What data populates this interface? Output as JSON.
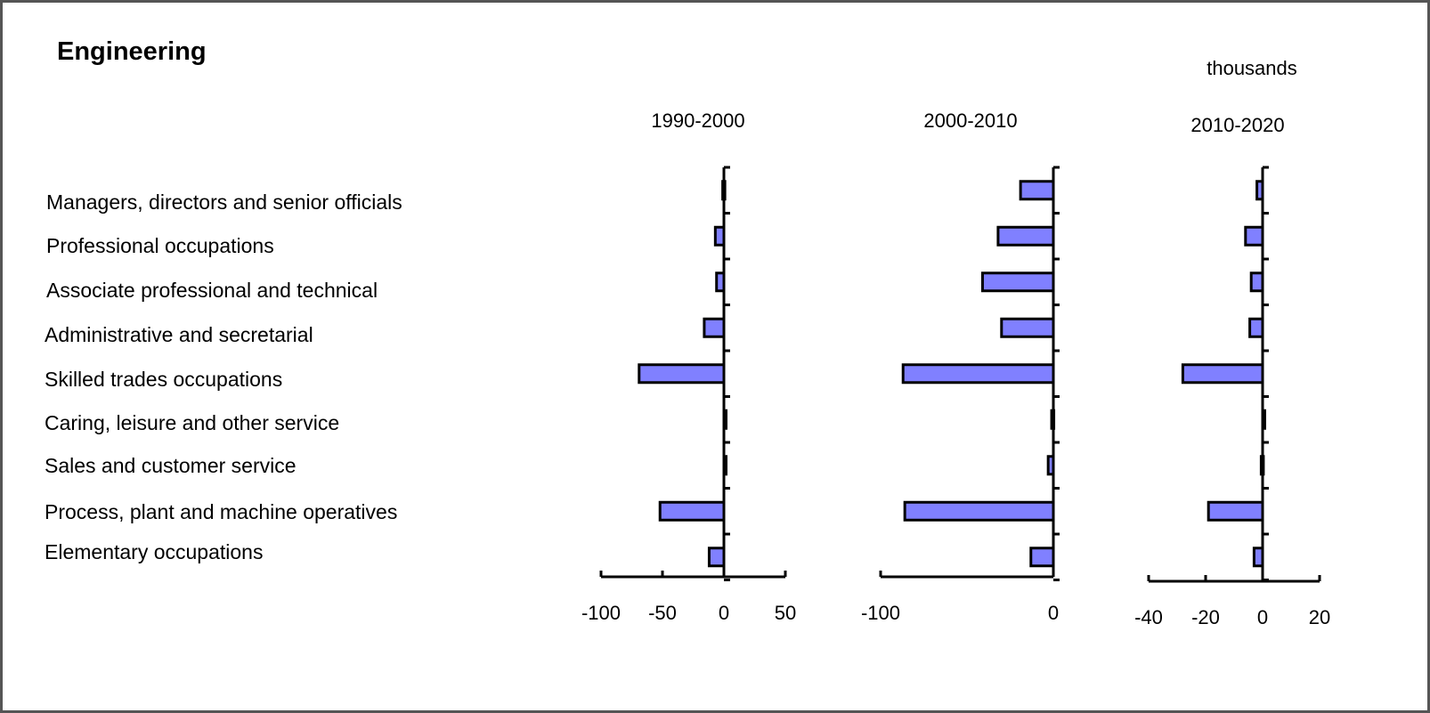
{
  "title": "Engineering",
  "units_label": "thousands",
  "colors": {
    "bar_fill": "#8080FF",
    "bar_stroke": "#000000",
    "frame": "#555555"
  },
  "categories": [
    "Managers, directors and senior officials",
    "Professional occupations",
    "Associate professional and technical",
    "Administrative and secretarial",
    "Skilled trades occupations",
    "Caring, leisure and other service",
    "Sales and customer service",
    "Process, plant and machine operatives",
    "Elementary occupations"
  ],
  "chart_data": [
    {
      "type": "bar",
      "orientation": "horizontal",
      "title": "1990-2000",
      "xlim": [
        -100,
        50
      ],
      "xticks": [
        -100,
        -50,
        0,
        50
      ],
      "xtick_labels": [
        "-100",
        "-50",
        "0",
        "50"
      ],
      "values": [
        -1,
        -7,
        -6,
        -16,
        -69,
        1,
        1,
        -52,
        -12
      ]
    },
    {
      "type": "bar",
      "orientation": "horizontal",
      "title": "2000-2010",
      "xlim": [
        -100,
        0
      ],
      "xticks": [
        -100,
        0
      ],
      "xtick_labels": [
        "-100",
        "0"
      ],
      "values": [
        -19,
        -32,
        -41,
        -30,
        -87,
        -1,
        -3,
        -86,
        -13
      ]
    },
    {
      "type": "bar",
      "orientation": "horizontal",
      "title": "2010-2020",
      "xlim": [
        -40,
        20
      ],
      "xticks": [
        -40,
        -20,
        0,
        20
      ],
      "xtick_labels": [
        "-40",
        "-20",
        "0",
        "20"
      ],
      "values": [
        -2,
        -6,
        -4,
        -4.5,
        -28,
        0.5,
        -0.5,
        -19,
        -3
      ]
    }
  ]
}
